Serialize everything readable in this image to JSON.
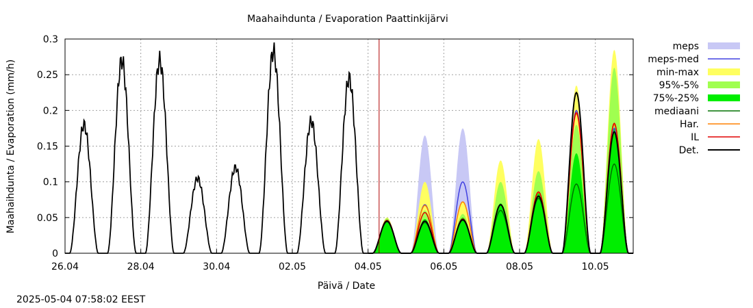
{
  "chart_data": {
    "type": "line",
    "title": "Maahaihdunta / Evaporation  Paattinkijärvi",
    "xlabel": "Päivä / Date",
    "ylabel": "Maahaihdunta / Evaporation (mm/h)",
    "xlim": [
      "2025-04-26",
      "2025-05-11T00:00"
    ],
    "ylim": [
      0,
      0.3
    ],
    "grid": true,
    "legend_position": "right",
    "x_ticks": [
      "26.04",
      "28.04",
      "30.04",
      "02.05",
      "04.05",
      "06.05",
      "08.05",
      "10.05"
    ],
    "y_ticks": [
      "0",
      "0.05",
      "0.1",
      "0.15",
      "0.2",
      "0.25",
      "0.3"
    ],
    "forecast_start": "2025-05-04T07:00",
    "legend": [
      {
        "label": "meps",
        "color": "#c8c8f5",
        "style": "band"
      },
      {
        "label": "meps-med",
        "color": "#4040e0",
        "style": "line"
      },
      {
        "label": "min-max",
        "color": "#ffff60",
        "style": "band"
      },
      {
        "label": "95%-5%",
        "color": "#a0ff50",
        "style": "band"
      },
      {
        "label": "75%-25%",
        "color": "#00ee00",
        "style": "band"
      },
      {
        "label": "mediaani",
        "color": "#007000",
        "style": "line"
      },
      {
        "label": "Har.",
        "color": "#ff8000",
        "style": "line"
      },
      {
        "label": "IL",
        "color": "#e00000",
        "style": "line"
      },
      {
        "label": "Det.",
        "color": "#000000",
        "style": "line"
      }
    ],
    "observed_daily_peaks": [
      {
        "date": "2025-04-26",
        "peak": 0.18
      },
      {
        "date": "2025-04-27",
        "peak": 0.27
      },
      {
        "date": "2025-04-28",
        "peak": 0.27
      },
      {
        "date": "2025-04-29",
        "peak": 0.105
      },
      {
        "date": "2025-04-30",
        "peak": 0.12
      },
      {
        "date": "2025-05-01",
        "peak": 0.283
      },
      {
        "date": "2025-05-02",
        "peak": 0.185
      },
      {
        "date": "2025-05-03",
        "peak": 0.245
      }
    ],
    "forecast_daily_peaks": [
      {
        "date": "2025-05-04",
        "meps_max": 0.048,
        "meps_med": 0.046,
        "min_max": 0.05,
        "p95": 0.049,
        "p75": 0.047,
        "mediaani": 0.044,
        "har": 0.046,
        "il": 0.046,
        "det": 0.045
      },
      {
        "date": "2025-05-05",
        "meps_max": 0.165,
        "meps_med": 0.068,
        "min_max": 0.1,
        "p95": 0.06,
        "p75": 0.048,
        "mediaani": 0.043,
        "har": 0.067,
        "il": 0.057,
        "det": 0.045
      },
      {
        "date": "2025-05-06",
        "meps_max": 0.175,
        "meps_med": 0.1,
        "min_max": 0.072,
        "p95": 0.055,
        "p75": 0.05,
        "mediaani": 0.046,
        "har": 0.072,
        "il": 0.048,
        "det": 0.047
      },
      {
        "date": "2025-05-07",
        "meps_max": 0.09,
        "meps_med": 0.068,
        "min_max": 0.13,
        "p95": 0.1,
        "p75": 0.07,
        "mediaani": 0.06,
        "har": 0.068,
        "il": 0.068,
        "det": 0.068
      },
      {
        "date": "2025-05-08",
        "meps_max": 0.1,
        "meps_med": 0.08,
        "min_max": 0.16,
        "p95": 0.115,
        "p75": 0.085,
        "mediaani": 0.077,
        "har": 0.085,
        "il": 0.086,
        "det": 0.08
      },
      {
        "date": "2025-05-09",
        "meps_max": 0.225,
        "meps_med": 0.2,
        "min_max": 0.235,
        "p95": 0.18,
        "p75": 0.14,
        "mediaani": 0.097,
        "har": 0.195,
        "il": 0.197,
        "det": 0.225
      },
      {
        "date": "2025-05-10",
        "meps_max": 0.26,
        "meps_med": 0.175,
        "min_max": 0.285,
        "p95": 0.26,
        "p75": 0.175,
        "mediaani": 0.125,
        "har": 0.18,
        "il": 0.182,
        "det": 0.17
      }
    ]
  },
  "timestamp": "2025-05-04 07:58:02 EEST"
}
